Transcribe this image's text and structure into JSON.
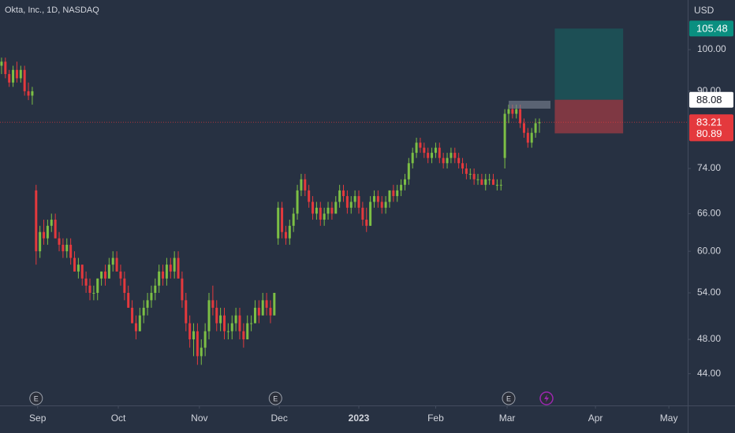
{
  "chart_data": {
    "type": "candlestick",
    "title": "Okta, Inc., 1D, NASDAQ",
    "currency": "USD",
    "log_scale": true,
    "up_color": "#7cbf45",
    "down_color": "#e4393d",
    "ylim": [
      40.6,
      113.4
    ],
    "yticks": [
      {
        "value": 44,
        "label": "44.00"
      },
      {
        "value": 48,
        "label": "48.00"
      },
      {
        "value": 54,
        "label": "54.00"
      },
      {
        "value": 60,
        "label": "60.00"
      },
      {
        "value": 66,
        "label": "66.00"
      },
      {
        "value": 74,
        "label": "74.00"
      },
      {
        "value": 90,
        "label": "90.00"
      },
      {
        "value": 100,
        "label": "100.00"
      }
    ],
    "xlim": [
      -0.4,
      178.6
    ],
    "xticks": [
      {
        "value": 9.4,
        "label": "Sep"
      },
      {
        "value": 30.4,
        "label": "Oct"
      },
      {
        "value": 51.5,
        "label": "Nov"
      },
      {
        "value": 72.3,
        "label": "Dec"
      },
      {
        "value": 93,
        "label": "2023"
      },
      {
        "value": 113,
        "label": "Feb"
      },
      {
        "value": 131.6,
        "label": "Mar"
      },
      {
        "value": 154.6,
        "label": "Apr"
      },
      {
        "value": 173.7,
        "label": "May"
      }
    ],
    "ohlc": [
      [
        96,
        98,
        94,
        97
      ],
      [
        97,
        98,
        93,
        94
      ],
      [
        94,
        95,
        91,
        92
      ],
      [
        92,
        96,
        91,
        95
      ],
      [
        95,
        97,
        92,
        93
      ],
      [
        93,
        96,
        92,
        95
      ],
      [
        95,
        96,
        89,
        90
      ],
      [
        90,
        92,
        88,
        89
      ],
      [
        89,
        91,
        87,
        90
      ],
      [
        70,
        71,
        58,
        60
      ],
      [
        60,
        64,
        59,
        63
      ],
      [
        63,
        65,
        61,
        62
      ],
      [
        62,
        65,
        61,
        64
      ],
      [
        64,
        66,
        63,
        65
      ],
      [
        65,
        66,
        62,
        62
      ],
      [
        62,
        63,
        60,
        61
      ],
      [
        61,
        62,
        59,
        60
      ],
      [
        60,
        62,
        59,
        61
      ],
      [
        61,
        62,
        58,
        59
      ],
      [
        59,
        60,
        57,
        57
      ],
      [
        57,
        59,
        56,
        58
      ],
      [
        58,
        58,
        55,
        56
      ],
      [
        56,
        57,
        54,
        55
      ],
      [
        55,
        56,
        53,
        54
      ],
      [
        54,
        55,
        53,
        54
      ],
      [
        54,
        56,
        53,
        56
      ],
      [
        56,
        57,
        55,
        57
      ],
      [
        57,
        58,
        55,
        56
      ],
      [
        56,
        59,
        56,
        58
      ],
      [
        58,
        60,
        57,
        59
      ],
      [
        59,
        60,
        57,
        57
      ],
      [
        57,
        58,
        55,
        56
      ],
      [
        56,
        57,
        53,
        54
      ],
      [
        54,
        55,
        52,
        52
      ],
      [
        52,
        53,
        50,
        50
      ],
      [
        50,
        51,
        48,
        49
      ],
      [
        49,
        52,
        49,
        51
      ],
      [
        51,
        53,
        50,
        52
      ],
      [
        52,
        54,
        51,
        53
      ],
      [
        53,
        55,
        52,
        54
      ],
      [
        54,
        56,
        53,
        55
      ],
      [
        55,
        58,
        54,
        57
      ],
      [
        57,
        58,
        55,
        56
      ],
      [
        56,
        59,
        55,
        58
      ],
      [
        58,
        59,
        56,
        57
      ],
      [
        57,
        60,
        56,
        59
      ],
      [
        59,
        60,
        56,
        56
      ],
      [
        56,
        57,
        52,
        53
      ],
      [
        53,
        54,
        49,
        50
      ],
      [
        50,
        51,
        47,
        48
      ],
      [
        48,
        50,
        46,
        49
      ],
      [
        49,
        50,
        45,
        46
      ],
      [
        46,
        48,
        45,
        47
      ],
      [
        47,
        50,
        46,
        49
      ],
      [
        49,
        54,
        48,
        53
      ],
      [
        53,
        55,
        51,
        52
      ],
      [
        52,
        53,
        49,
        50
      ],
      [
        50,
        52,
        49,
        51
      ],
      [
        51,
        52,
        48,
        49
      ],
      [
        49,
        50,
        48,
        49
      ],
      [
        49,
        51,
        48,
        50
      ],
      [
        50,
        52,
        49,
        51
      ],
      [
        51,
        52,
        48,
        49
      ],
      [
        49,
        50,
        47,
        48
      ],
      [
        48,
        51,
        48,
        50
      ],
      [
        50,
        51,
        49,
        50
      ],
      [
        50,
        53,
        50,
        52
      ],
      [
        52,
        53,
        50,
        51
      ],
      [
        51,
        54,
        51,
        53
      ],
      [
        53,
        54,
        51,
        52
      ],
      [
        52,
        53,
        50,
        51
      ],
      [
        51,
        54,
        51,
        54
      ],
      [
        62,
        68,
        61,
        67
      ],
      [
        67,
        68,
        62,
        63
      ],
      [
        63,
        64,
        61,
        62
      ],
      [
        62,
        65,
        61,
        64
      ],
      [
        64,
        67,
        63,
        66
      ],
      [
        66,
        71,
        65,
        70
      ],
      [
        70,
        73,
        69,
        72
      ],
      [
        72,
        73,
        69,
        70
      ],
      [
        70,
        71,
        67,
        68
      ],
      [
        68,
        69,
        65,
        66
      ],
      [
        66,
        68,
        65,
        67
      ],
      [
        67,
        68,
        64,
        65
      ],
      [
        65,
        67,
        64,
        66
      ],
      [
        66,
        68,
        65,
        67
      ],
      [
        67,
        68,
        65,
        66
      ],
      [
        66,
        69,
        66,
        68
      ],
      [
        68,
        71,
        67,
        70
      ],
      [
        70,
        71,
        68,
        69
      ],
      [
        69,
        70,
        66,
        67
      ],
      [
        67,
        69,
        66,
        68
      ],
      [
        68,
        70,
        67,
        69
      ],
      [
        69,
        70,
        66,
        67
      ],
      [
        67,
        68,
        64,
        65
      ],
      [
        65,
        67,
        63,
        64
      ],
      [
        64,
        69,
        64,
        68
      ],
      [
        68,
        70,
        67,
        69
      ],
      [
        69,
        70,
        67,
        68
      ],
      [
        68,
        69,
        66,
        67
      ],
      [
        67,
        69,
        66,
        68
      ],
      [
        68,
        70,
        67,
        70
      ],
      [
        70,
        71,
        68,
        69
      ],
      [
        69,
        71,
        68,
        70
      ],
      [
        70,
        72,
        69,
        71
      ],
      [
        71,
        73,
        70,
        72
      ],
      [
        72,
        76,
        71,
        75
      ],
      [
        75,
        78,
        74,
        77
      ],
      [
        77,
        80,
        76,
        79
      ],
      [
        79,
        80,
        77,
        78
      ],
      [
        78,
        79,
        76,
        77
      ],
      [
        77,
        78,
        75,
        76
      ],
      [
        76,
        78,
        75,
        77
      ],
      [
        77,
        79,
        76,
        78
      ],
      [
        78,
        79,
        75,
        76
      ],
      [
        76,
        77,
        74,
        75
      ],
      [
        75,
        77,
        74,
        76
      ],
      [
        76,
        78,
        75,
        77
      ],
      [
        77,
        78,
        75,
        76
      ],
      [
        76,
        77,
        74,
        75
      ],
      [
        75,
        76,
        73,
        74
      ],
      [
        74,
        75,
        72,
        73
      ],
      [
        73,
        74,
        72,
        73
      ],
      [
        73,
        74,
        71,
        72
      ],
      [
        72,
        73,
        71,
        72
      ],
      [
        72,
        73,
        71,
        71
      ],
      [
        71,
        73,
        70,
        72
      ],
      [
        72,
        73,
        71,
        72
      ],
      [
        72,
        73,
        71,
        71
      ],
      [
        71,
        72,
        70,
        71
      ],
      [
        71,
        72,
        70,
        71
      ],
      [
        76,
        86,
        74,
        85
      ],
      [
        85,
        87,
        83,
        86
      ],
      [
        86,
        87,
        84,
        85
      ],
      [
        85,
        87,
        84,
        86
      ],
      [
        86,
        87,
        82,
        83
      ],
      [
        83,
        84,
        80,
        81
      ],
      [
        81,
        82,
        78,
        79
      ],
      [
        79,
        82,
        78,
        81
      ],
      [
        81,
        84,
        80,
        83
      ],
      [
        83,
        84,
        81,
        83.21
      ]
    ],
    "last_price": 83.21,
    "position": {
      "x": [
        144,
        161.8
      ],
      "entry": 88.08,
      "target": 105.48,
      "stop": 80.89
    },
    "events": [
      {
        "x": 9,
        "label": "E"
      },
      {
        "x": 71.3,
        "label": "E"
      },
      {
        "x": 132,
        "label": "E"
      }
    ]
  }
}
